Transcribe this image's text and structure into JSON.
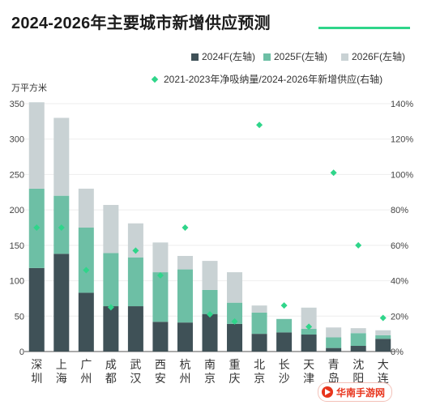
{
  "chart_data": {
    "type": "bar",
    "stacked": true,
    "title": "2024-2026年主要城市新增供应预测",
    "ylabel": "万平方米",
    "ylim": [
      0,
      350
    ],
    "yticks": [
      0,
      50,
      100,
      150,
      200,
      250,
      300,
      350
    ],
    "y2lim": [
      0,
      1.4
    ],
    "y2ticks": [
      "0%",
      "20%",
      "40%",
      "60%",
      "80%",
      "100%",
      "120%",
      "140%"
    ],
    "categories": [
      "深圳",
      "上海",
      "广州",
      "成都",
      "武汉",
      "西安",
      "杭州",
      "南京",
      "重庆",
      "北京",
      "长沙",
      "天津",
      "青岛",
      "沈阳",
      "大连"
    ],
    "series": [
      {
        "name": "2024F(左轴)",
        "color": "#3f5157",
        "values": [
          118,
          138,
          83,
          64,
          64,
          42,
          41,
          53,
          39,
          25,
          27,
          24,
          5,
          8,
          18
        ]
      },
      {
        "name": "2025F(左轴)",
        "color": "#6dbfa5",
        "values": [
          112,
          82,
          92,
          75,
          69,
          70,
          75,
          34,
          30,
          30,
          19,
          8,
          15,
          18,
          5
        ]
      },
      {
        "name": "2026F(左轴)",
        "color": "#c9d2d4",
        "values": [
          122,
          110,
          55,
          68,
          48,
          42,
          19,
          41,
          43,
          10,
          0,
          30,
          14,
          7,
          7
        ]
      }
    ],
    "scatter": {
      "name": "2021-2023年净吸纳量/2024-2026年新增供应(右轴)",
      "color": "#2fd58a",
      "axis": "right",
      "values": [
        0.7,
        0.7,
        0.46,
        0.25,
        0.57,
        0.43,
        0.7,
        0.21,
        0.17,
        1.28,
        0.26,
        0.14,
        1.01,
        0.6,
        0.19
      ]
    }
  },
  "watermark": "华南手游网"
}
